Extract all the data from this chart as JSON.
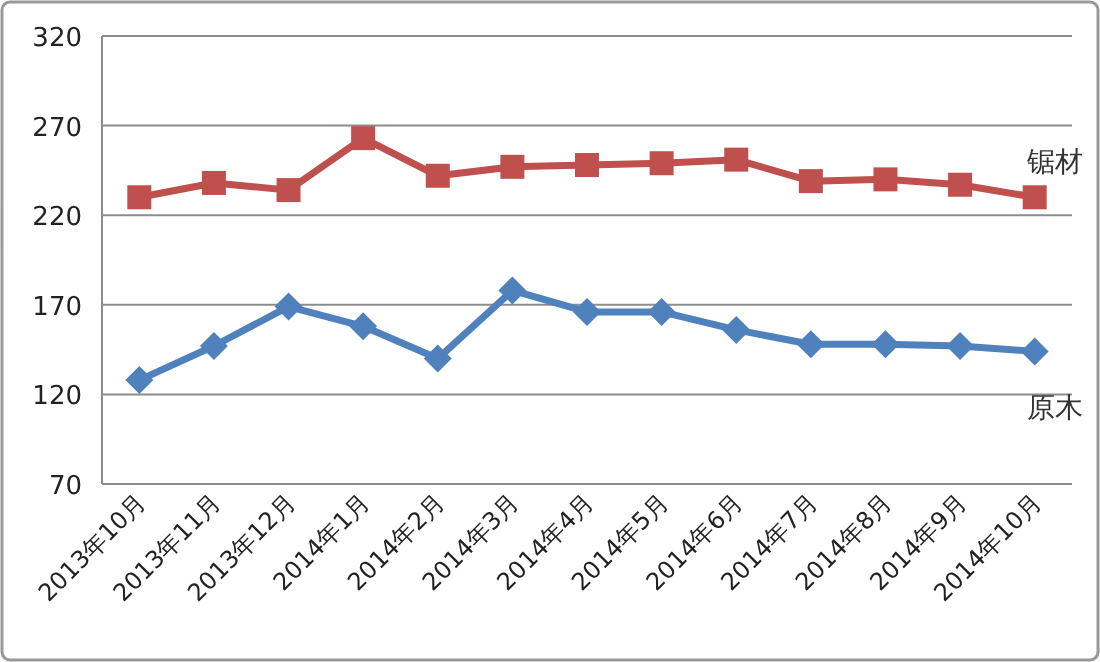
{
  "chart_data": {
    "type": "line",
    "categories": [
      "2013年10月",
      "2013年11月",
      "2013年12月",
      "2014年1月",
      "2014年2月",
      "2014年3月",
      "2014年4月",
      "2014年5月",
      "2014年6月",
      "2014年7月",
      "2014年8月",
      "2014年9月",
      "2014年10月"
    ],
    "series": [
      {
        "name": "锯材",
        "color": "#c0504d",
        "marker": "square",
        "values": [
          230,
          238,
          234,
          263,
          242,
          247,
          248,
          249,
          251,
          239,
          240,
          237,
          230
        ]
      },
      {
        "name": "原木",
        "color": "#4f81bd",
        "marker": "diamond",
        "values": [
          128,
          147,
          169,
          158,
          140,
          178,
          166,
          166,
          156,
          148,
          148,
          147,
          144
        ]
      }
    ],
    "ylim": [
      70,
      320
    ],
    "yticks": [
      70,
      120,
      170,
      220,
      270,
      320
    ],
    "grid": "y",
    "legend": false,
    "line_style": "solid"
  }
}
